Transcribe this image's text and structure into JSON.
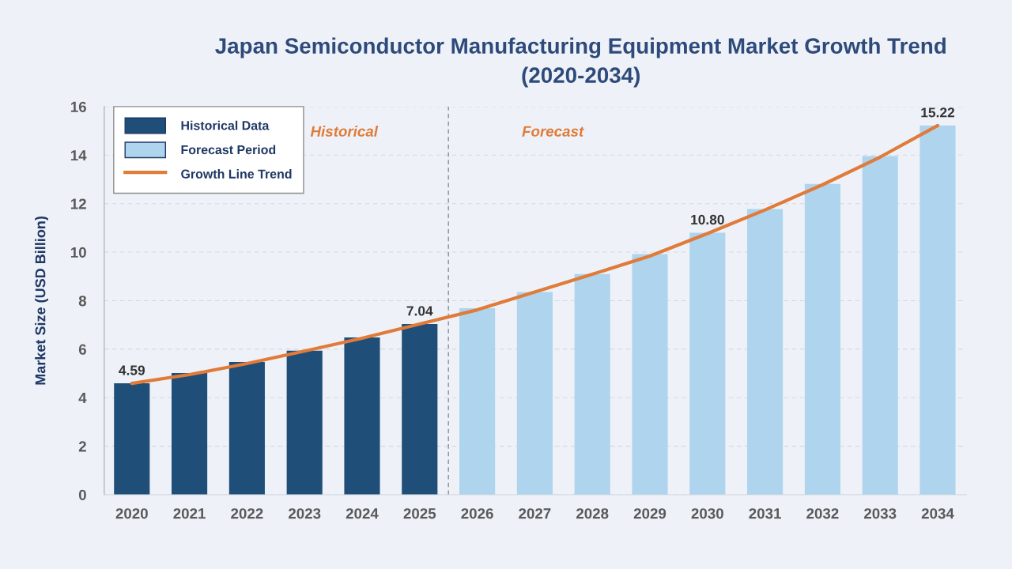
{
  "chart_data": {
    "type": "bar",
    "title": "Japan Semiconductor Manufacturing Equipment Market Growth Trend\n(2020-2034)",
    "ylabel": "Market Size (USD Billion)",
    "x": [
      2020,
      2021,
      2022,
      2023,
      2024,
      2025,
      2026,
      2027,
      2028,
      2029,
      2030,
      2031,
      2032,
      2033,
      2034
    ],
    "xlim": [
      2019.52,
      2034.5
    ],
    "xticks": [
      2020,
      2021,
      2022,
      2023,
      2024,
      2025,
      2026,
      2027,
      2028,
      2029,
      2030,
      2031,
      2032,
      2033,
      2034
    ],
    "ylim": [
      0,
      16
    ],
    "yticks": [
      0,
      2,
      4,
      6,
      8,
      10,
      12,
      14,
      16
    ],
    "stacked": true,
    "grid": "y",
    "legend": "top left",
    "series": [
      {
        "name": "Historical Data",
        "color": "#1f4e79",
        "values": [
          4.59,
          5.02,
          5.47,
          5.94,
          6.48,
          7.04,
          null,
          null,
          null,
          null,
          null,
          null,
          null,
          null,
          null
        ],
        "value_labels": [
          "4.59",
          null,
          null,
          null,
          null,
          "7.04",
          null,
          null,
          null,
          null,
          null,
          null,
          null,
          null,
          null
        ]
      },
      {
        "name": "Forecast Period",
        "color": "#aed4ee",
        "values": [
          null,
          null,
          null,
          null,
          null,
          null,
          7.69,
          8.36,
          9.1,
          9.92,
          10.8,
          11.78,
          12.81,
          13.96,
          15.22
        ],
        "value_labels": [
          null,
          null,
          null,
          null,
          null,
          null,
          null,
          null,
          null,
          null,
          "10.80",
          null,
          null,
          null,
          "15.22"
        ]
      },
      {
        "name": "Growth Line Trend",
        "type": "line",
        "color": "#e07b39",
        "values": [
          4.59,
          4.95,
          5.41,
          5.92,
          6.45,
          7.04,
          7.62,
          8.36,
          9.09,
          9.84,
          10.77,
          11.74,
          12.78,
          13.92,
          15.22
        ]
      }
    ],
    "ref_lines": [
      {
        "axis": "x",
        "value": 2025.5,
        "color": "#8c8c8c",
        "line_style": "dashed"
      }
    ],
    "annotations": [
      "Historical",
      "Forecast"
    ]
  }
}
